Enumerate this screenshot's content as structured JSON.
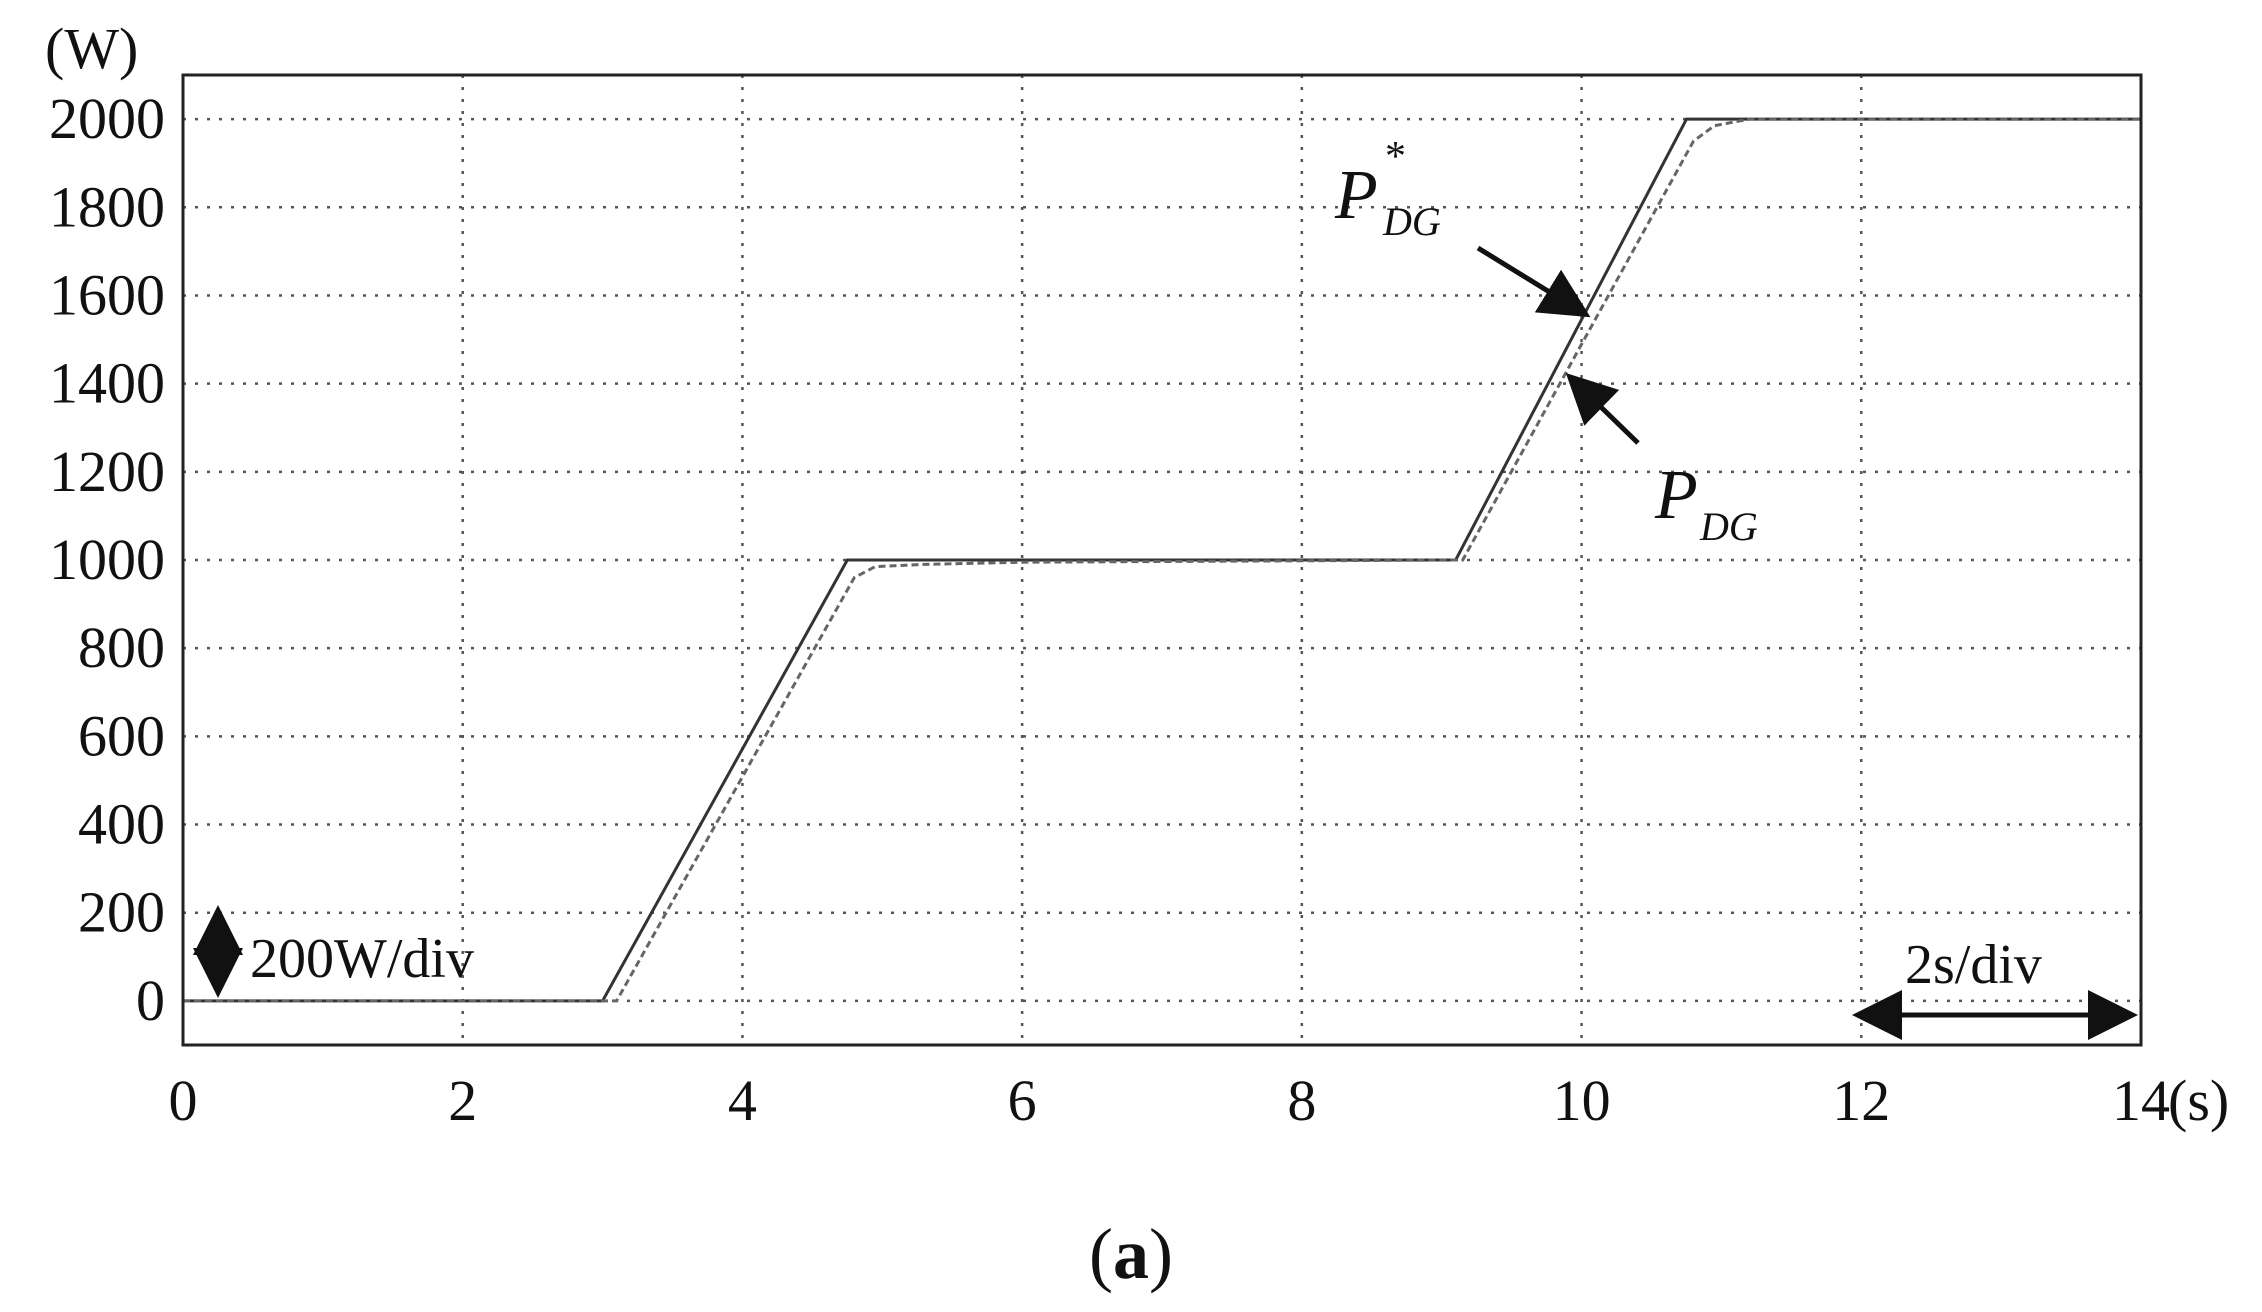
{
  "chart_data": {
    "type": "line",
    "ylabel": "(W)",
    "xlabel": "(s)",
    "xlim": [
      0,
      14
    ],
    "ylim": [
      -100,
      2100
    ],
    "x_ticks": [
      0,
      2,
      4,
      6,
      8,
      10,
      12,
      14
    ],
    "y_ticks": [
      0,
      200,
      400,
      600,
      800,
      1000,
      1200,
      1400,
      1600,
      1800,
      2000
    ],
    "grid": true,
    "series": [
      {
        "name": "P*_DG",
        "x": [
          0,
          3.0,
          4.75,
          9.1,
          10.75,
          14
        ],
        "values": [
          0,
          0,
          1000,
          1000,
          2000,
          2000
        ]
      },
      {
        "name": "P_DG",
        "x": [
          0,
          3.1,
          4.8,
          4.95,
          5.3,
          6.0,
          9.15,
          10.8,
          10.95,
          11.2,
          14
        ],
        "values": [
          0,
          0,
          960,
          985,
          990,
          995,
          1000,
          1950,
          1985,
          2000,
          2000
        ]
      }
    ],
    "annotations": {
      "series_label_ref": {
        "main": "P",
        "sup": "*",
        "sub": "DG"
      },
      "series_label_act": {
        "main": "P",
        "sub": "DG"
      },
      "y_scale": "200W/div",
      "x_scale": "2s/div"
    },
    "caption": {
      "open": "(",
      "letter": "a",
      "close": ")"
    }
  }
}
